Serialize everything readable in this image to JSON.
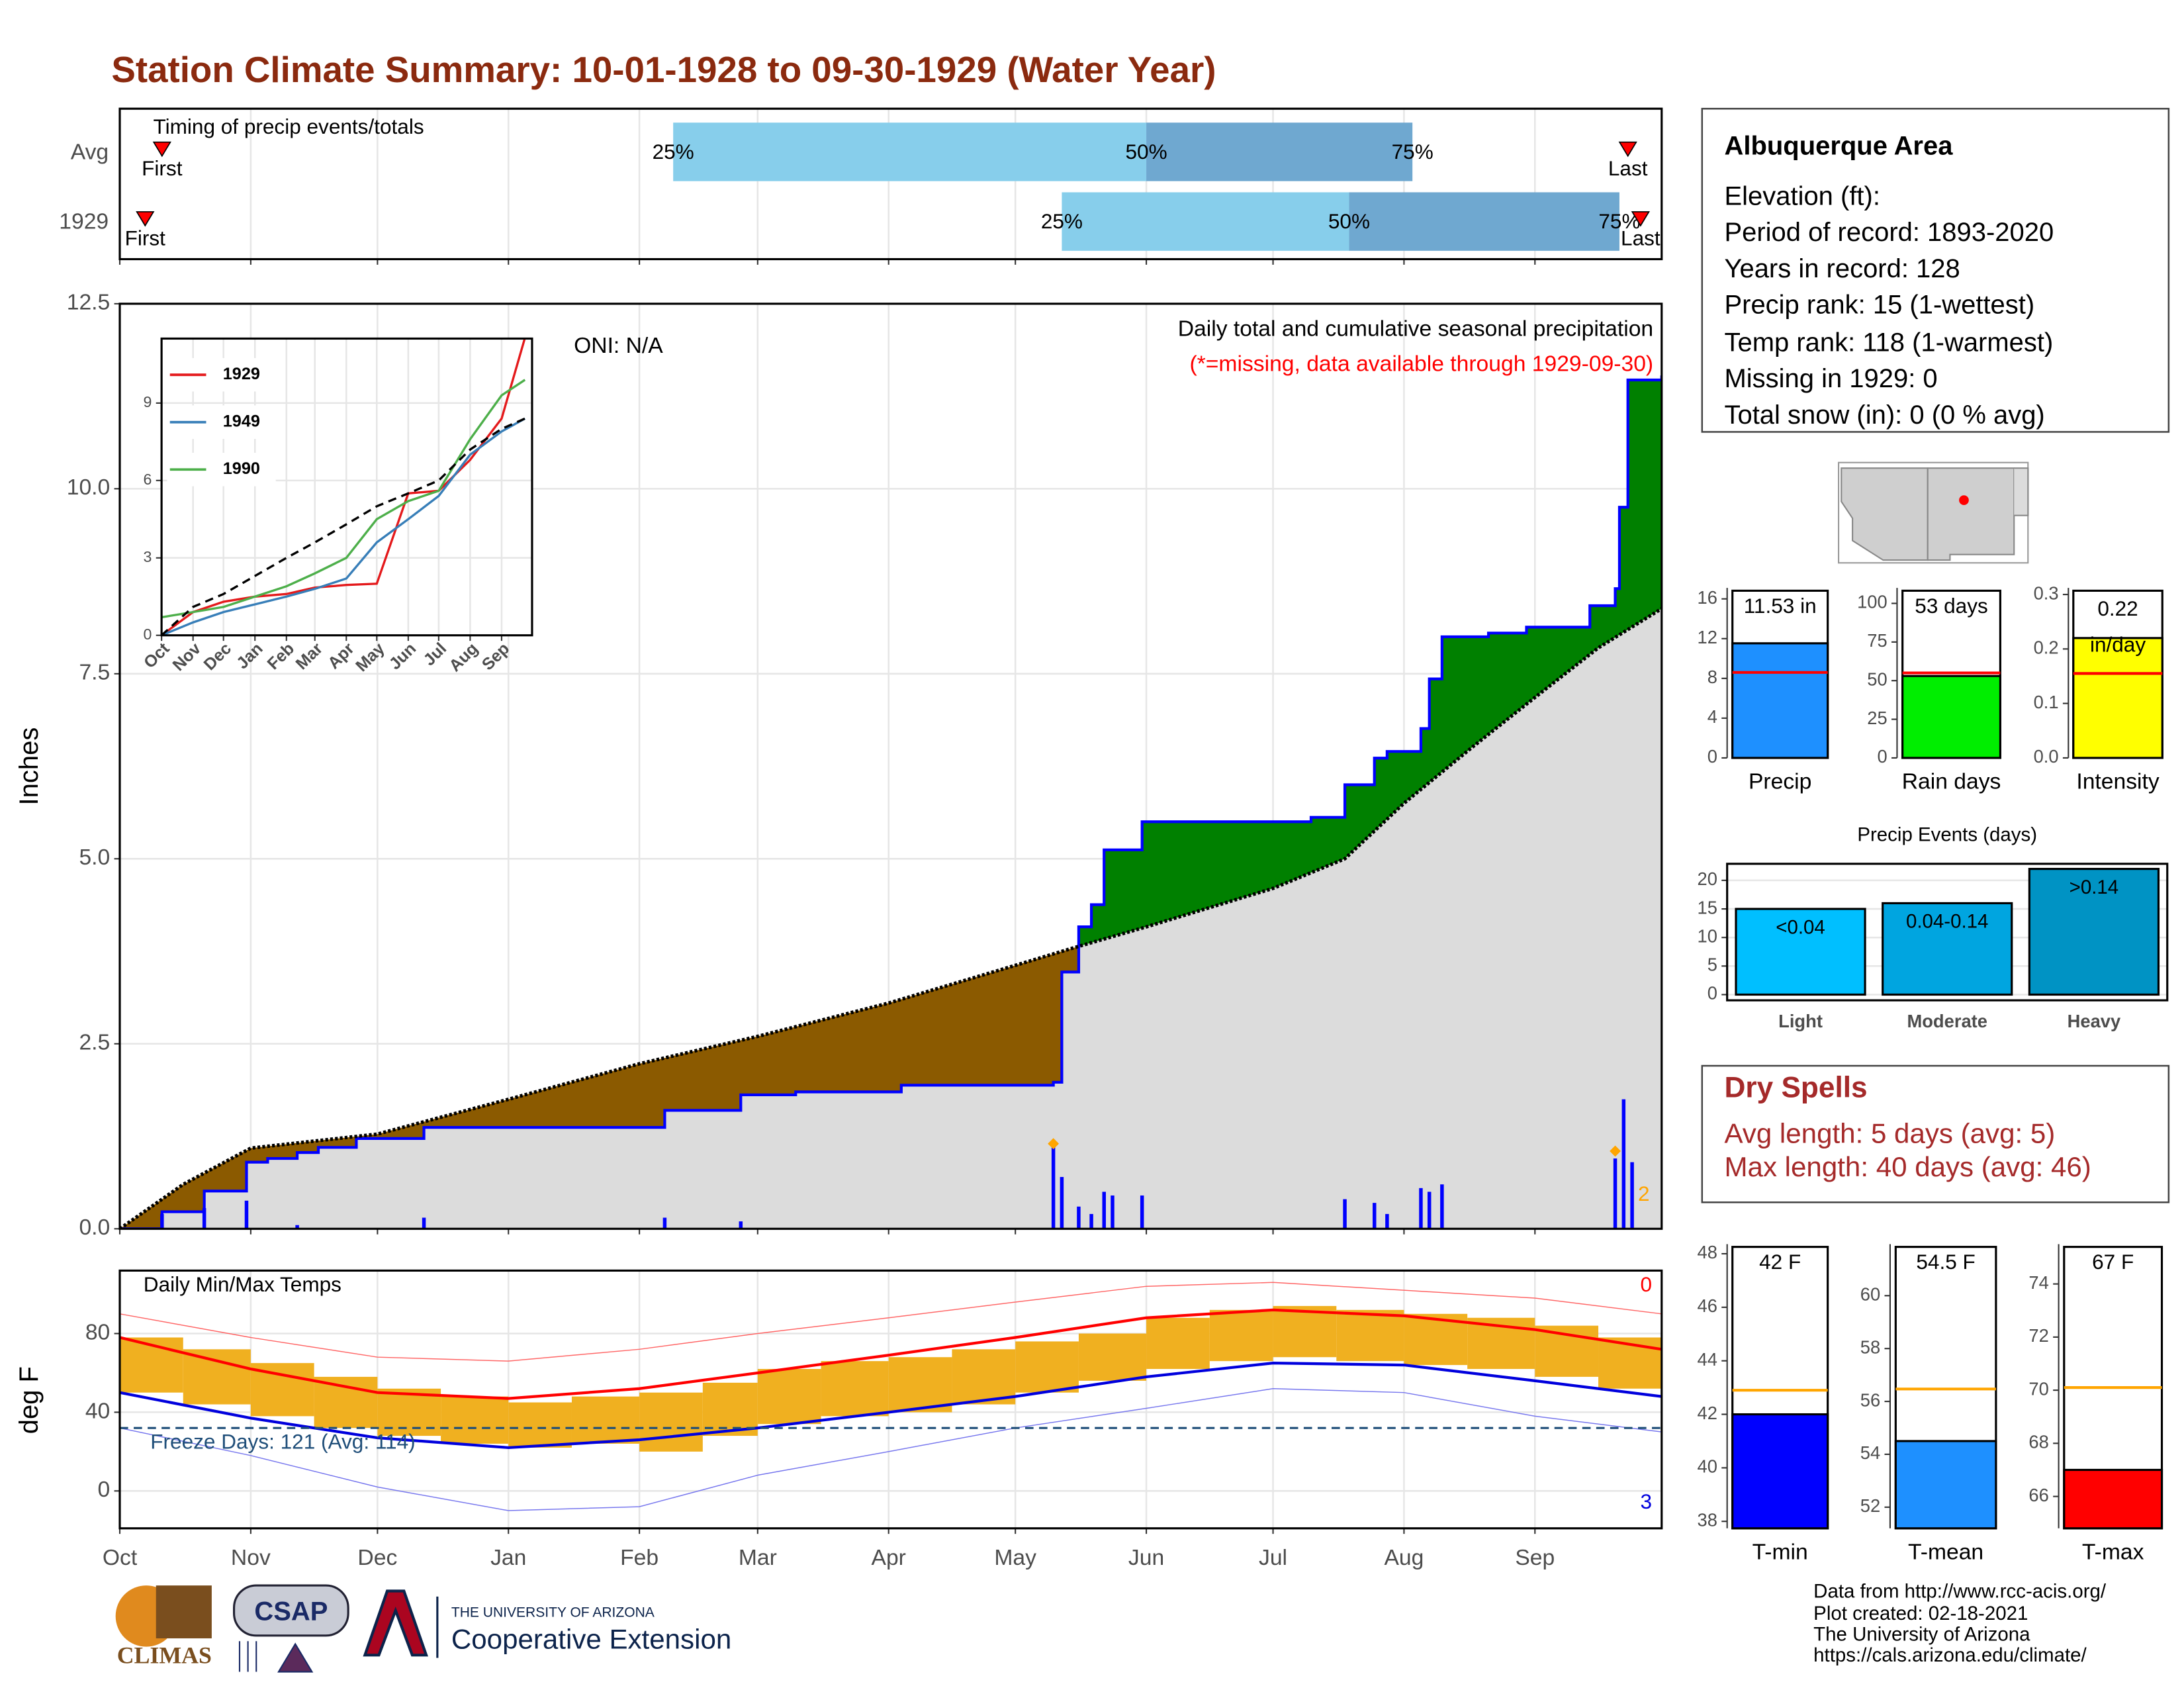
{
  "title": "Station Climate Summary: 10-01-1928 to 09-30-1929 (Water Year)",
  "info": {
    "title": "Albuquerque Area",
    "lines": [
      "Elevation (ft):",
      "Period of record: 1893-2020",
      "Years in record: 128",
      "Precip rank: 15 (1-wettest)",
      "Temp rank: 118 (1-warmest)",
      "Missing in 1929: 0",
      "Total snow (in): 0 (0 % avg)"
    ]
  },
  "dry_spells": {
    "title": "Dry Spells",
    "lines": [
      "Avg length: 5 days (avg: 5)",
      "Max length: 40 days (avg: 46)"
    ]
  },
  "logos": [
    "CLIMAS",
    "CSAP",
    "THE UNIVERSITY OF ARIZONA",
    "Cooperative Extension"
  ],
  "footer": [
    "Data from http://www.rcc-acis.org/",
    "Plot created: 02-18-2021",
    "The University of Arizona",
    "https://cals.arizona.edu/climate/"
  ],
  "chart_data": [
    {
      "type": "timeline",
      "title": "Timing of precip events/totals",
      "xlim": [
        0,
        365
      ],
      "xticks": [
        0,
        31,
        61,
        92,
        123,
        151,
        182,
        212,
        243,
        273,
        304,
        335
      ],
      "colors": [
        "#87ceeb",
        "#6fa8d0"
      ],
      "marker_color": "#ff0000",
      "rows": [
        {
          "label": "Avg",
          "first": 10,
          "first_label": "First",
          "last": 357,
          "last_label": "Last",
          "quartiles": [
            131,
            243,
            306
          ],
          "quartile_labels": [
            "25%",
            "50%",
            "75%"
          ]
        },
        {
          "label": "1929",
          "first": 6,
          "first_label": "First",
          "last": 360,
          "last_label": "Last",
          "quartiles": [
            223,
            291,
            355
          ],
          "quartile_labels": [
            "25%",
            "50%",
            "75%"
          ]
        }
      ]
    },
    {
      "type": "area",
      "ylabel": "Inches",
      "xlim": [
        0,
        365
      ],
      "xticks": [
        0,
        31,
        61,
        92,
        123,
        151,
        182,
        212,
        243,
        273,
        304,
        335
      ],
      "ylim": [
        0,
        12.5
      ],
      "yticks": [
        {
          "value": 0,
          "label": "0.0"
        },
        {
          "value": 2.5,
          "label": "2.5"
        },
        {
          "value": 5,
          "label": "5.0"
        },
        {
          "value": 7.5,
          "label": "7.5"
        },
        {
          "value": 10,
          "label": "10.0"
        },
        {
          "value": 12.5,
          "label": "12.5"
        }
      ],
      "grid": true,
      "above_color": "#008000",
      "below_color": "#8b5a00",
      "base_color": "#dcdcdc",
      "series": [
        {
          "color": "#0000ff",
          "style": "step",
          "x": [
            0,
            8,
            10,
            20,
            30,
            35,
            42,
            47,
            56,
            72,
            129,
            147,
            160,
            185,
            221,
            223,
            227,
            230,
            233,
            242,
            282,
            290,
            297,
            300,
            308,
            310,
            313,
            324,
            333,
            348,
            354,
            355,
            357,
            365
          ],
          "values": [
            0,
            0,
            0.23,
            0.51,
            0.9,
            0.95,
            1.03,
            1.1,
            1.22,
            1.37,
            1.6,
            1.81,
            1.85,
            1.94,
            1.98,
            3.47,
            4.08,
            4.38,
            5.12,
            5.5,
            5.56,
            6.0,
            6.36,
            6.45,
            6.76,
            7.43,
            8.0,
            8.05,
            8.13,
            8.42,
            8.65,
            9.75,
            11.47,
            11.53
          ]
        },
        {
          "color": "#000000",
          "style": "line",
          "x": [
            0,
            15,
            31,
            61,
            92,
            123,
            151,
            182,
            212,
            226,
            243,
            273,
            290,
            304,
            320,
            335,
            350,
            365
          ],
          "values": [
            0,
            0.6,
            1.09,
            1.28,
            1.75,
            2.23,
            2.6,
            3.05,
            3.56,
            3.8,
            4.08,
            4.6,
            5.0,
            5.75,
            6.5,
            7.18,
            7.85,
            8.38
          ]
        }
      ],
      "bars": {
        "color": "#0000ff",
        "x": [
          10,
          20,
          30,
          42,
          72,
          129,
          147,
          221,
          223,
          227,
          230,
          233,
          235,
          242,
          290,
          297,
          300,
          308,
          310,
          313,
          354,
          356,
          358
        ],
        "values": [
          0.2,
          0.28,
          0.38,
          0.05,
          0.15,
          0.15,
          0.1,
          1.15,
          0.7,
          0.3,
          0.2,
          0.5,
          0.45,
          0.45,
          0.4,
          0.35,
          0.2,
          0.55,
          0.5,
          0.6,
          0.95,
          1.75,
          0.9
        ]
      },
      "markers": {
        "color": "#ffa500",
        "x": [
          221,
          354
        ],
        "values": [
          1.15,
          1.05
        ]
      },
      "annotations": [
        "ONI: N/A",
        "Daily total and cumulative seasonal precipitation",
        "(*=missing, data available through 1929-09-30)",
        "2"
      ]
    },
    {
      "type": "range",
      "title": "Daily Min/Max Temps",
      "ylabel": "deg F",
      "xlim": [
        0,
        365
      ],
      "xticks": [
        {
          "value": 0,
          "label": "Oct"
        },
        {
          "value": 31,
          "label": "Nov"
        },
        {
          "value": 61,
          "label": "Dec"
        },
        {
          "value": 92,
          "label": "Jan"
        },
        {
          "value": 123,
          "label": "Feb"
        },
        {
          "value": 151,
          "label": "Mar"
        },
        {
          "value": 182,
          "label": "Apr"
        },
        {
          "value": 212,
          "label": "May"
        },
        {
          "value": 243,
          "label": "Jun"
        },
        {
          "value": 273,
          "label": "Jul"
        },
        {
          "value": 304,
          "label": "Aug"
        },
        {
          "value": 335,
          "label": "Sep"
        }
      ],
      "ylim": [
        -19,
        112
      ],
      "yticks": [
        0,
        40,
        80
      ],
      "grid": true,
      "bars": {
        "color": "#f0b020",
        "x": [
          0,
          15,
          31,
          46,
          61,
          76,
          92,
          107,
          123,
          138,
          151,
          166,
          182,
          197,
          212,
          227,
          243,
          258,
          273,
          288,
          304,
          319,
          335,
          350
        ],
        "max": [
          78,
          72,
          65,
          58,
          52,
          48,
          45,
          48,
          50,
          55,
          62,
          66,
          68,
          72,
          76,
          80,
          88,
          92,
          94,
          92,
          90,
          88,
          84,
          78
        ],
        "min": [
          50,
          44,
          38,
          32,
          28,
          24,
          22,
          24,
          20,
          28,
          34,
          38,
          40,
          44,
          50,
          56,
          62,
          66,
          68,
          66,
          64,
          62,
          58,
          52
        ]
      },
      "series": [
        {
          "color": "#ff0000",
          "width": 2,
          "x": [
            0,
            31,
            61,
            92,
            123,
            151,
            182,
            212,
            243,
            273,
            304,
            335,
            365
          ],
          "values": [
            78,
            62,
            50,
            47,
            52,
            60,
            69,
            78,
            88,
            92,
            89,
            82,
            72
          ]
        },
        {
          "color": "#0000dd",
          "width": 2,
          "x": [
            0,
            31,
            61,
            92,
            123,
            151,
            182,
            212,
            243,
            273,
            304,
            335,
            365
          ],
          "values": [
            50,
            37,
            27,
            22,
            26,
            32,
            40,
            48,
            58,
            65,
            64,
            56,
            48
          ]
        },
        {
          "color": "#ff6666",
          "width": 0.7,
          "x": [
            0,
            31,
            61,
            92,
            123,
            151,
            182,
            212,
            243,
            273,
            304,
            335,
            365
          ],
          "values": [
            90,
            78,
            68,
            66,
            72,
            80,
            88,
            96,
            104,
            106,
            102,
            98,
            90
          ]
        },
        {
          "color": "#7777ee",
          "width": 0.7,
          "x": [
            0,
            31,
            61,
            92,
            123,
            151,
            182,
            212,
            243,
            273,
            304,
            335,
            365
          ],
          "values": [
            32,
            18,
            2,
            -10,
            -8,
            8,
            20,
            32,
            42,
            52,
            50,
            38,
            30
          ]
        }
      ],
      "freeze_line": 32,
      "freeze_color": "#1f4e79",
      "annotations": [
        "Freeze Days: 121 (Avg: 114)",
        "0",
        "3"
      ]
    },
    {
      "type": "line",
      "xlim": [
        0,
        365
      ],
      "xticks": [
        {
          "value": 0,
          "label": "Oct"
        },
        {
          "value": 31,
          "label": "Nov"
        },
        {
          "value": 61,
          "label": "Dec"
        },
        {
          "value": 92,
          "label": "Jan"
        },
        {
          "value": 123,
          "label": "Feb"
        },
        {
          "value": 151,
          "label": "Mar"
        },
        {
          "value": 182,
          "label": "Apr"
        },
        {
          "value": 212,
          "label": "May"
        },
        {
          "value": 243,
          "label": "Jun"
        },
        {
          "value": 273,
          "label": "Jul"
        },
        {
          "value": 304,
          "label": "Aug"
        },
        {
          "value": 335,
          "label": "Sep"
        }
      ],
      "ylim": [
        0,
        11.5
      ],
      "yticks": [
        0,
        3,
        6,
        9
      ],
      "grid": true,
      "series": [
        {
          "name": "1929",
          "color": "#e41a1c",
          "x": [
            0,
            31,
            61,
            92,
            123,
            151,
            182,
            212,
            243,
            273,
            304,
            335,
            358
          ],
          "values": [
            0,
            0.9,
            1.3,
            1.5,
            1.6,
            1.85,
            1.95,
            2.0,
            5.5,
            5.6,
            6.8,
            8.4,
            11.53
          ]
        },
        {
          "name": "1949",
          "color": "#377eb8",
          "x": [
            0,
            31,
            61,
            92,
            123,
            151,
            182,
            212,
            243,
            273,
            304,
            335,
            358
          ],
          "values": [
            0,
            0.5,
            0.9,
            1.2,
            1.5,
            1.8,
            2.2,
            3.6,
            4.5,
            5.4,
            7.0,
            7.9,
            8.4
          ]
        },
        {
          "name": "1990",
          "color": "#4daf4a",
          "x": [
            0,
            31,
            61,
            92,
            123,
            151,
            182,
            212,
            243,
            273,
            304,
            335,
            358
          ],
          "values": [
            0.7,
            0.9,
            1.1,
            1.5,
            1.9,
            2.4,
            3.0,
            4.5,
            5.2,
            5.6,
            7.6,
            9.3,
            9.9
          ]
        },
        {
          "color": "#000000",
          "style": "dashed",
          "x": [
            0,
            31,
            61,
            92,
            123,
            151,
            182,
            212,
            243,
            273,
            304,
            335,
            358
          ],
          "values": [
            0,
            1.1,
            1.6,
            2.3,
            3.0,
            3.6,
            4.3,
            5.0,
            5.5,
            6.0,
            7.2,
            8.0,
            8.4
          ]
        }
      ]
    },
    {
      "type": "bar",
      "categories": [
        "Precip"
      ],
      "values": [
        11.53
      ],
      "value_labels": [
        "11.53 in"
      ],
      "color": "#1e90ff",
      "reference": 8.6,
      "reference_color": "#ff0000",
      "ylim": [
        0,
        17.1
      ],
      "yticks": [
        0,
        4,
        8,
        12,
        16
      ]
    },
    {
      "type": "bar",
      "categories": [
        "Rain days"
      ],
      "values": [
        53
      ],
      "value_labels": [
        "53 days"
      ],
      "color": "#00ee00",
      "reference": 55,
      "reference_color": "#ff0000",
      "ylim": [
        0,
        110
      ],
      "yticks": [
        0,
        25,
        50,
        75,
        100
      ]
    },
    {
      "type": "bar",
      "categories": [
        "Intensity"
      ],
      "values": [
        0.22
      ],
      "value_labels": [
        "0.22 in/day"
      ],
      "color": "#ffff00",
      "reference": 0.155,
      "reference_color": "#ff0000",
      "ylim": [
        0,
        0.312
      ],
      "yticks": [
        {
          "value": 0,
          "label": "0.0"
        },
        {
          "value": 0.1,
          "label": "0.1"
        },
        {
          "value": 0.2,
          "label": "0.2"
        },
        {
          "value": 0.3,
          "label": "0.3"
        }
      ]
    },
    {
      "type": "bar",
      "title": "Precip Events (days)",
      "categories": [
        "Light",
        "Moderate",
        "Heavy"
      ],
      "values": [
        15,
        16,
        22
      ],
      "value_labels": [
        "<0.04",
        "0.04-0.14",
        ">0.14"
      ],
      "colors": [
        "#00bfff",
        "#00a5e0",
        "#0093c4"
      ],
      "ylim": [
        -1,
        22.9
      ],
      "yticks": [
        0,
        5,
        10,
        15,
        20
      ],
      "grid": true
    },
    {
      "type": "bar",
      "categories": [
        "T-min"
      ],
      "values": [
        42
      ],
      "value_labels": [
        "42 F"
      ],
      "color": "#0000ff",
      "reference": 42.9,
      "reference_color": "#ffa500",
      "ylim": [
        37.74,
        48.36
      ],
      "yticks": [
        38,
        40,
        42,
        44,
        46,
        48
      ]
    },
    {
      "type": "bar",
      "categories": [
        "T-mean"
      ],
      "values": [
        54.5
      ],
      "value_labels": [
        "54.5 F"
      ],
      "color": "#1e90ff",
      "reference": 56.47,
      "reference_color": "#ffa500",
      "ylim": [
        51.2,
        61.95
      ],
      "yticks": [
        52,
        54,
        56,
        58,
        60
      ]
    },
    {
      "type": "bar",
      "categories": [
        "T-max"
      ],
      "values": [
        67
      ],
      "value_labels": [
        "67 F"
      ],
      "color": "#ff0000",
      "reference": 70.1,
      "reference_color": "#ffa500",
      "ylim": [
        64.8,
        75.5
      ],
      "yticks": [
        66,
        68,
        70,
        72,
        74
      ]
    }
  ]
}
